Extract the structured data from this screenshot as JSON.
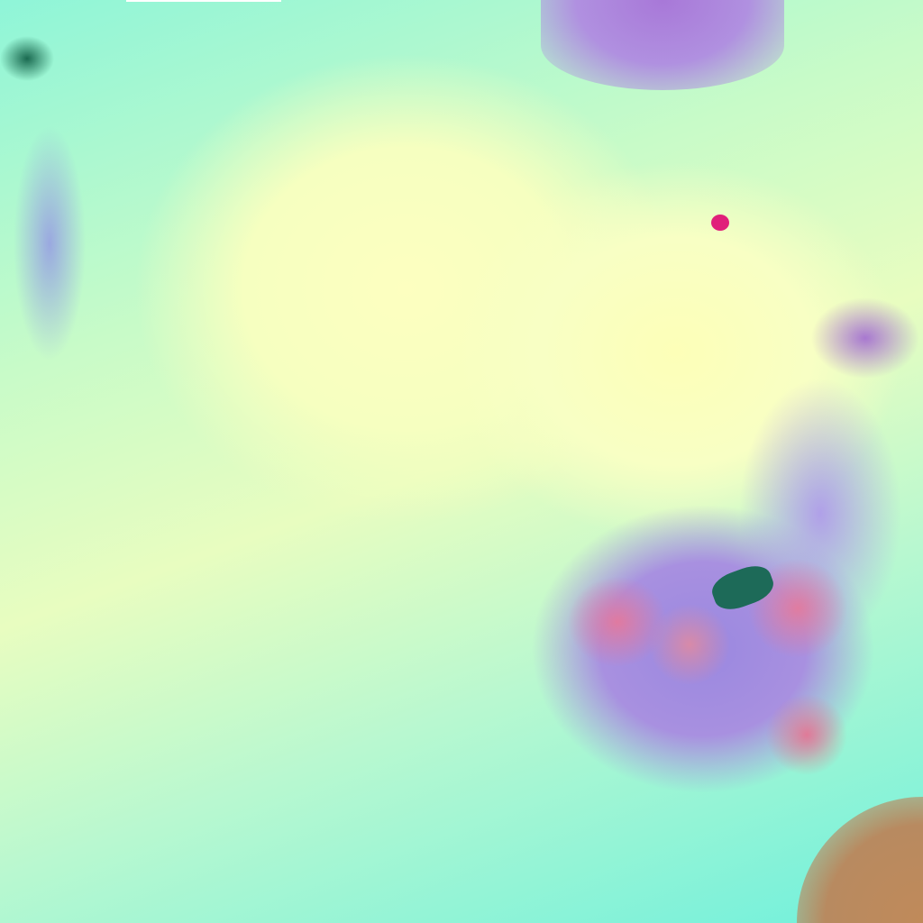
{
  "image": {
    "kind": "false-color satellite cloud imagery",
    "colors": {
      "ocean_cyan": "#6ff0dc",
      "cloud_yellow": "#fbffc0",
      "cold_cloud_purple": "#a07ad8",
      "convective_red": "#e07aa0",
      "land_brown": "#c08a5a",
      "land_dark": "#1a6a50",
      "hotspot_magenta": "#e0207a"
    }
  }
}
